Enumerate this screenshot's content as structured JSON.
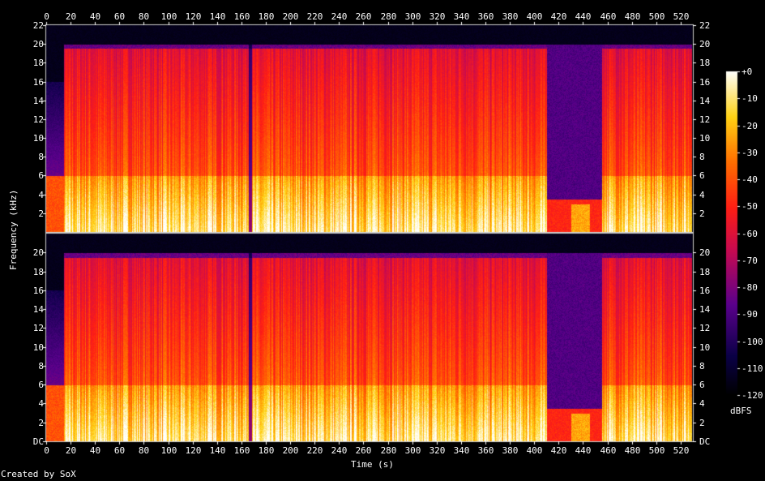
{
  "chart_data": {
    "type": "heatmap",
    "title": "",
    "xlabel": "Time (s)",
    "ylabel": "Frequency (kHz)",
    "xlim": [
      0,
      530
    ],
    "ylim": [
      0,
      22
    ],
    "x_ticks": [
      0,
      20,
      40,
      60,
      80,
      100,
      120,
      140,
      160,
      180,
      200,
      220,
      240,
      260,
      280,
      300,
      320,
      340,
      360,
      380,
      400,
      420,
      440,
      460,
      480,
      500,
      520
    ],
    "y_ticks_top": [
      "2",
      "4",
      "6",
      "8",
      "10",
      "12",
      "14",
      "16",
      "18",
      "20",
      "22"
    ],
    "y_ticks_bottom": [
      "DC",
      "2",
      "4",
      "6",
      "8",
      "10",
      "12",
      "14",
      "16",
      "18",
      "20"
    ],
    "channels": 2,
    "colorbar": {
      "label": "dBFS",
      "ticks": [
        "+0",
        "-10",
        "-20",
        "-30",
        "-40",
        "-50",
        "-60",
        "-70",
        "-80",
        "-90",
        "-100",
        "-110",
        "-120"
      ],
      "range": [
        -120,
        0
      ]
    },
    "features": {
      "lowpass_cutoff_khz": 20,
      "early_cutoff_khz": 16,
      "early_cutoff_end_s": 14,
      "quiet_section_s": [
        410,
        455
      ],
      "bright_band_below_khz": 6,
      "sound_end_s": 530
    },
    "footer": "Created by SoX"
  }
}
